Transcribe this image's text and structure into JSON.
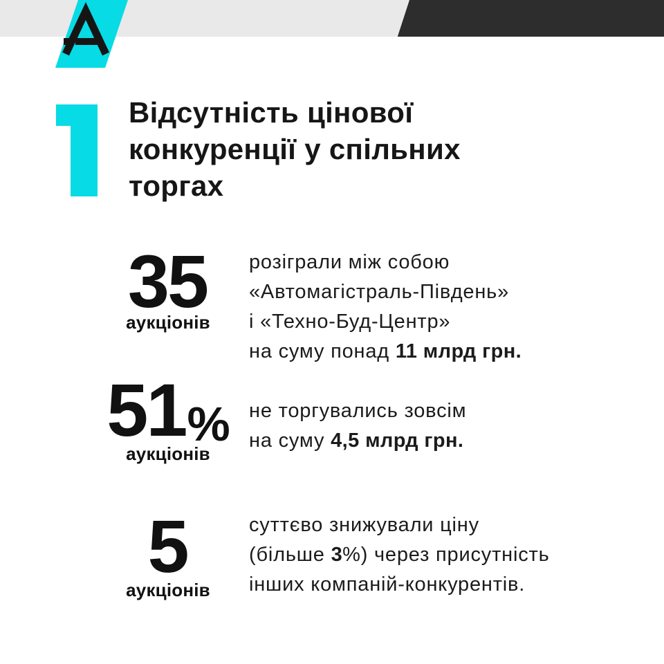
{
  "theme": {
    "accent": "#07dbe5",
    "band": "#e9e9e9",
    "band_accent": "#2d2d2d",
    "text": "#1b1b1b",
    "number": "#111111",
    "background": "#ffffff"
  },
  "brand": {
    "letter": "A"
  },
  "section": {
    "number": "1",
    "title": "Відсутність цінової конкуренції у спільних торгах",
    "title_lines": [
      "Відсутність цінової",
      "конкуренції у спільних",
      "торгах"
    ]
  },
  "stats": [
    {
      "value": "35",
      "suffix": "",
      "label": "аукціонів",
      "desc_lines": [
        [
          {
            "t": "розіграли між собою"
          }
        ],
        [
          {
            "t": "«Автомагістраль-Південь»"
          }
        ],
        [
          {
            "t": "і «Техно-Буд-Центр»"
          }
        ],
        [
          {
            "t": "на суму понад "
          },
          {
            "t": "11 млрд грн.",
            "b": true
          }
        ]
      ]
    },
    {
      "value": "51",
      "suffix": "%",
      "label": "аукціонів",
      "desc_lines": [
        [
          {
            "t": "не торгувались зовсім"
          }
        ],
        [
          {
            "t": "на суму "
          },
          {
            "t": "4,5 млрд грн.",
            "b": true
          }
        ]
      ]
    },
    {
      "value": "5",
      "suffix": "",
      "label": "аукціонів",
      "desc_lines": [
        [
          {
            "t": "суттєво знижували ціну"
          }
        ],
        [
          {
            "t": "(більше "
          },
          {
            "t": "3",
            "b": true
          },
          {
            "t": "%) через присутність"
          }
        ],
        [
          {
            "t": "інших компаній-конкурентів."
          }
        ]
      ]
    }
  ]
}
